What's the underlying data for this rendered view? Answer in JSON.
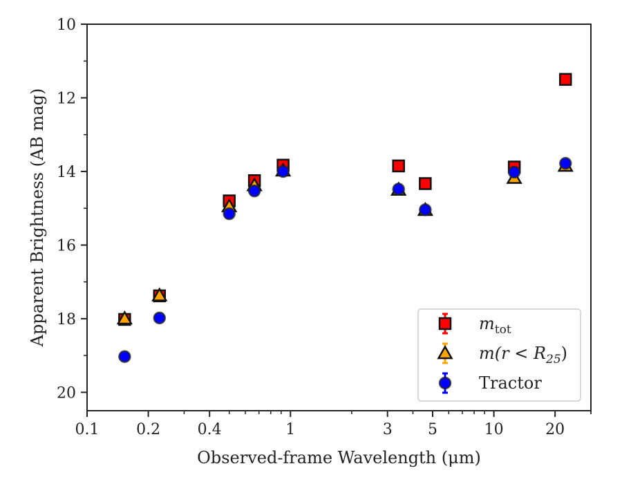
{
  "chart_data": {
    "type": "scatter",
    "xlabel": "Observed-frame Wavelength (μm)",
    "ylabel": "Apparent Brightness (AB mag)",
    "xscale": "log",
    "xlim": [
      0.1,
      30
    ],
    "ylim": [
      20.5,
      10
    ],
    "y_inverted": true,
    "x_ticks": [
      {
        "value": 0.1,
        "label": "0.1"
      },
      {
        "value": 0.2,
        "label": "0.2"
      },
      {
        "value": 0.4,
        "label": "0.4"
      },
      {
        "value": 1,
        "label": "1"
      },
      {
        "value": 3,
        "label": "3"
      },
      {
        "value": 5,
        "label": "5"
      },
      {
        "value": 10,
        "label": "10"
      },
      {
        "value": 20,
        "label": "20"
      }
    ],
    "y_ticks": [
      {
        "value": 10,
        "label": "10"
      },
      {
        "value": 12,
        "label": "12"
      },
      {
        "value": 14,
        "label": "14"
      },
      {
        "value": 16,
        "label": "16"
      },
      {
        "value": 18,
        "label": "18"
      },
      {
        "value": 20,
        "label": "20"
      }
    ],
    "grid": false,
    "legend_position": "lower-right",
    "series": [
      {
        "name": "m_tot",
        "legend_main": "m",
        "legend_sub": "tot",
        "marker": "square",
        "color": "#ff0000",
        "points": [
          {
            "x": 0.153,
            "y": 18.02
          },
          {
            "x": 0.227,
            "y": 17.38
          },
          {
            "x": 0.5,
            "y": 14.8
          },
          {
            "x": 0.665,
            "y": 14.25
          },
          {
            "x": 0.92,
            "y": 13.83
          },
          {
            "x": 3.4,
            "y": 13.85
          },
          {
            "x": 4.6,
            "y": 14.33
          },
          {
            "x": 12.6,
            "y": 13.88
          },
          {
            "x": 22.5,
            "y": 11.5
          }
        ]
      },
      {
        "name": "m(r < R25)",
        "legend_main": "m(r < R",
        "legend_sub": "25",
        "legend_tail": ")",
        "marker": "triangle",
        "color": "#ffa500",
        "points": [
          {
            "x": 0.153,
            "y": 18.0
          },
          {
            "x": 0.227,
            "y": 17.37
          },
          {
            "x": 0.5,
            "y": 14.95
          },
          {
            "x": 0.665,
            "y": 14.38
          },
          {
            "x": 0.92,
            "y": 13.98
          },
          {
            "x": 3.4,
            "y": 14.5
          },
          {
            "x": 4.6,
            "y": 15.05
          },
          {
            "x": 12.6,
            "y": 14.18
          },
          {
            "x": 22.5,
            "y": 13.85
          }
        ]
      },
      {
        "name": "Tractor",
        "legend_main": "Tractor",
        "marker": "circle",
        "color": "#0000ff",
        "points": [
          {
            "x": 0.153,
            "y": 19.03
          },
          {
            "x": 0.227,
            "y": 17.98
          },
          {
            "x": 0.5,
            "y": 15.15
          },
          {
            "x": 0.665,
            "y": 14.53
          },
          {
            "x": 0.92,
            "y": 14.0
          },
          {
            "x": 3.4,
            "y": 14.48
          },
          {
            "x": 4.6,
            "y": 15.04
          },
          {
            "x": 12.6,
            "y": 14.02
          },
          {
            "x": 22.5,
            "y": 13.78
          }
        ]
      }
    ]
  }
}
